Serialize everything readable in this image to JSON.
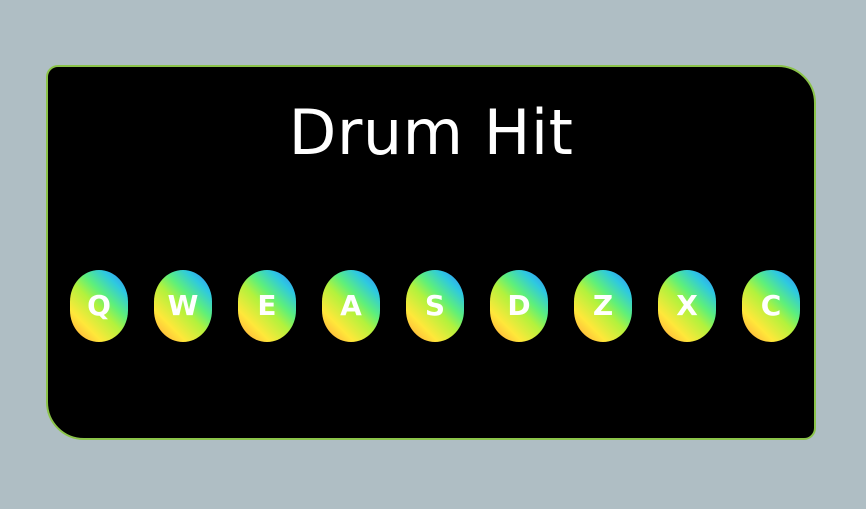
{
  "app": {
    "title": "Drum Hit"
  },
  "pads": [
    {
      "key": "Q"
    },
    {
      "key": "W"
    },
    {
      "key": "E"
    },
    {
      "key": "A"
    },
    {
      "key": "S"
    },
    {
      "key": "D"
    },
    {
      "key": "Z"
    },
    {
      "key": "X"
    },
    {
      "key": "C"
    }
  ],
  "colors": {
    "page_background": "#afbec4",
    "panel_background": "#000000",
    "panel_border": "#8bc34a",
    "pad_gradient": [
      "#ff9a3c",
      "#ffe83a",
      "#b2f23d",
      "#5ef07a",
      "#2ec9e0",
      "#3a7bff"
    ],
    "text": "#ffffff"
  }
}
